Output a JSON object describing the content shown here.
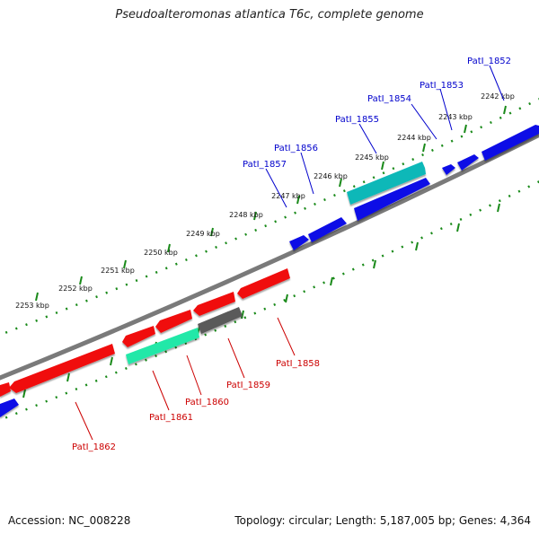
{
  "title": "Pseudoalteromonas atlantica T6c, complete genome",
  "footer": {
    "accession": "Accession: NC_008228",
    "topology": "Topology: circular; Length: 5,187,005 bp; Genes: 4,364"
  },
  "colors": {
    "forward_gene": "#0a0ae6",
    "reverse_gene": "#f01010",
    "teal_gene": "#10b8b8",
    "green_gene": "#20e8a8",
    "grey_gene": "#5a5a5a",
    "backbone": "#7a7a7a",
    "tick": "#1a8a1a",
    "forward_label": "#0000cc",
    "reverse_label": "#cc0000"
  },
  "kbp_labels": [
    "2242 kbp",
    "2243 kbp",
    "2244 kbp",
    "2245 kbp",
    "2246 kbp",
    "2247 kbp",
    "2248 kbp",
    "2249 kbp",
    "2250 kbp",
    "2251 kbp",
    "2252 kbp",
    "2253 kbp"
  ],
  "forward_gene_labels": [
    "PatI_1852",
    "PatI_1853",
    "PatI_1854",
    "PatI_1855",
    "PatI_1856",
    "PatI_1857"
  ],
  "reverse_gene_labels": [
    "PatI_1858",
    "PatI_1859",
    "PatI_1860",
    "PatI_1861",
    "PatI_1862"
  ]
}
